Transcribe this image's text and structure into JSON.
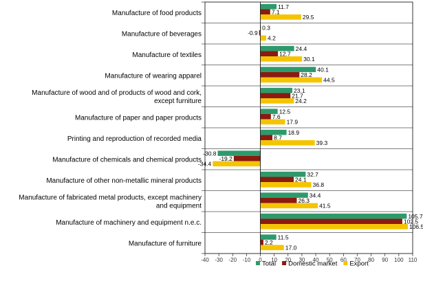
{
  "chart_data": {
    "type": "bar",
    "orientation": "horizontal",
    "title": "",
    "xlabel": "",
    "ylabel": "",
    "xlim": [
      -40,
      110
    ],
    "xticks": [
      -40,
      -30,
      -20,
      -10,
      0,
      10,
      20,
      30,
      40,
      50,
      60,
      70,
      80,
      90,
      100,
      110
    ],
    "grid": false,
    "legend_position": "bottom",
    "categories": [
      [
        "Manufacture of food products"
      ],
      [
        "Manufacture of beverages"
      ],
      [
        "Manufacture of textiles"
      ],
      [
        "Manufacture of wearing apparel"
      ],
      [
        "Manufacture of wood and of products of wood and cork,",
        "except furniture"
      ],
      [
        "Manufacture of paper and paper products"
      ],
      [
        "Printing and reproduction of recorded media"
      ],
      [
        "Manufacture of chemicals and chemical products"
      ],
      [
        "Manufacture of other non-metallic mineral products"
      ],
      [
        "Manufacture of fabricated metal products, except machinery",
        "and equipment"
      ],
      [
        "Manufacture of machinery and equipment n.e.c."
      ],
      [
        "Manufacture of furniture"
      ]
    ],
    "series": [
      {
        "name": "Total",
        "color": "#2e9a6b",
        "values": [
          11.7,
          0.3,
          24.4,
          40.1,
          23.1,
          12.5,
          18.9,
          -30.8,
          32.7,
          34.4,
          105.7,
          11.5
        ],
        "labels": [
          "11.7",
          "0.3",
          "24.4",
          "40.1",
          "23.1",
          "12.5",
          "18.9",
          "-30.8",
          "32.7",
          "34.4",
          "105.7",
          "11.5"
        ]
      },
      {
        "name": "Domestic market",
        "color": "#8b1a10",
        "values": [
          7.1,
          -0.9,
          12.7,
          28.2,
          21.7,
          7.6,
          8.7,
          -19.2,
          24.1,
          26.3,
          102.5,
          2.2
        ],
        "labels": [
          "7.1",
          "-0.9",
          "12.7",
          "28.2",
          "21.7",
          "7.6",
          "8.7",
          "-19.2",
          "24.1",
          "26.3",
          "102.5",
          "2.2"
        ]
      },
      {
        "name": "Export",
        "color": "#f5c400",
        "values": [
          29.5,
          4.2,
          30.1,
          44.5,
          24.2,
          17.9,
          39.3,
          -34.4,
          36.8,
          41.5,
          106.5,
          17.0
        ],
        "labels": [
          "29.5",
          "4.2",
          "30.1",
          "44.5",
          "24.2",
          "17.9",
          "39.3",
          "-34.4",
          "36.8",
          "41.5",
          "106.5",
          "17.0"
        ]
      }
    ]
  }
}
